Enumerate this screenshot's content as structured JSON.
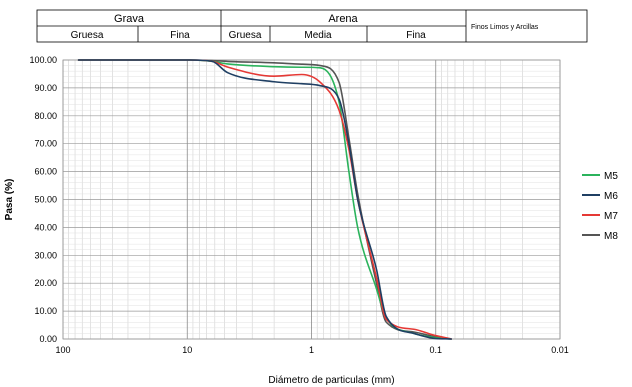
{
  "header": {
    "grava": "Grava",
    "arena": "Arena",
    "finos": "Finos  Limos y Arcillas",
    "gruesa_grava": "Gruesa",
    "fina_grava": "Fina",
    "gruesa_arena": "Gruesa",
    "media_arena": "Media",
    "fina_arena": "Fina"
  },
  "chart_data": {
    "type": "line",
    "title": "",
    "xlabel": "Diámetro de particulas (mm)",
    "ylabel": "Pasa (%)",
    "x_scale": "log",
    "x_reversed": true,
    "xlim": [
      100,
      0.01
    ],
    "ylim": [
      0,
      100
    ],
    "x_ticks": [
      100,
      10,
      1,
      0.1,
      0.01
    ],
    "x_tick_labels": [
      "100",
      "10",
      "1",
      "0.1",
      "0.01"
    ],
    "y_ticks": [
      0,
      10,
      20,
      30,
      40,
      50,
      60,
      70,
      80,
      90,
      100
    ],
    "y_tick_labels": [
      "0.00",
      "10.00",
      "20.00",
      "30.00",
      "40.00",
      "50.00",
      "60.00",
      "70.00",
      "80.00",
      "90.00",
      "100.00"
    ],
    "grid": true,
    "legend_position": "right",
    "series": [
      {
        "name": "M5",
        "color": "#2bb35c",
        "x": [
          75,
          50,
          25,
          19,
          12.5,
          9.5,
          6.3,
          4.75,
          2,
          1.2,
          0.85,
          0.6,
          0.5,
          0.425,
          0.3,
          0.25,
          0.15,
          0.106,
          0.075
        ],
        "y": [
          100,
          100,
          100,
          100,
          100,
          100,
          99.5,
          98.6,
          97.6,
          97.4,
          97.2,
          85,
          60,
          40,
          18,
          7.5,
          2,
          0.6,
          0
        ]
      },
      {
        "name": "M6",
        "color": "#1f3f63",
        "x": [
          75,
          50,
          25,
          19,
          12.5,
          9.5,
          6.3,
          4.75,
          2,
          1.2,
          0.85,
          0.6,
          0.5,
          0.425,
          0.3,
          0.25,
          0.15,
          0.106,
          0.075
        ],
        "y": [
          100,
          100,
          100,
          100,
          100,
          100,
          99.5,
          95.5,
          92.2,
          91.5,
          90.8,
          86,
          70,
          50,
          25,
          8,
          2,
          0.3,
          0
        ]
      },
      {
        "name": "M7",
        "color": "#e53935",
        "x": [
          75,
          50,
          25,
          19,
          12.5,
          9.5,
          6.3,
          4.75,
          2,
          1.2,
          0.85,
          0.6,
          0.5,
          0.425,
          0.3,
          0.25,
          0.15,
          0.106,
          0.075
        ],
        "y": [
          100,
          100,
          100,
          100,
          100,
          100,
          99.5,
          97.5,
          94.2,
          94.8,
          92,
          82,
          68,
          50,
          22,
          7,
          3.5,
          1.5,
          0
        ]
      },
      {
        "name": "M8",
        "color": "#555555",
        "x": [
          75,
          50,
          25,
          19,
          12.5,
          9.5,
          6.3,
          4.75,
          2,
          1.2,
          0.85,
          0.6,
          0.5,
          0.425,
          0.3,
          0.25,
          0.15,
          0.106,
          0.075
        ],
        "y": [
          100,
          100,
          100,
          100,
          100,
          100,
          99.8,
          99.5,
          99.0,
          98.5,
          98,
          92,
          72,
          52,
          20,
          6,
          2.5,
          1.0,
          0
        ]
      }
    ]
  }
}
